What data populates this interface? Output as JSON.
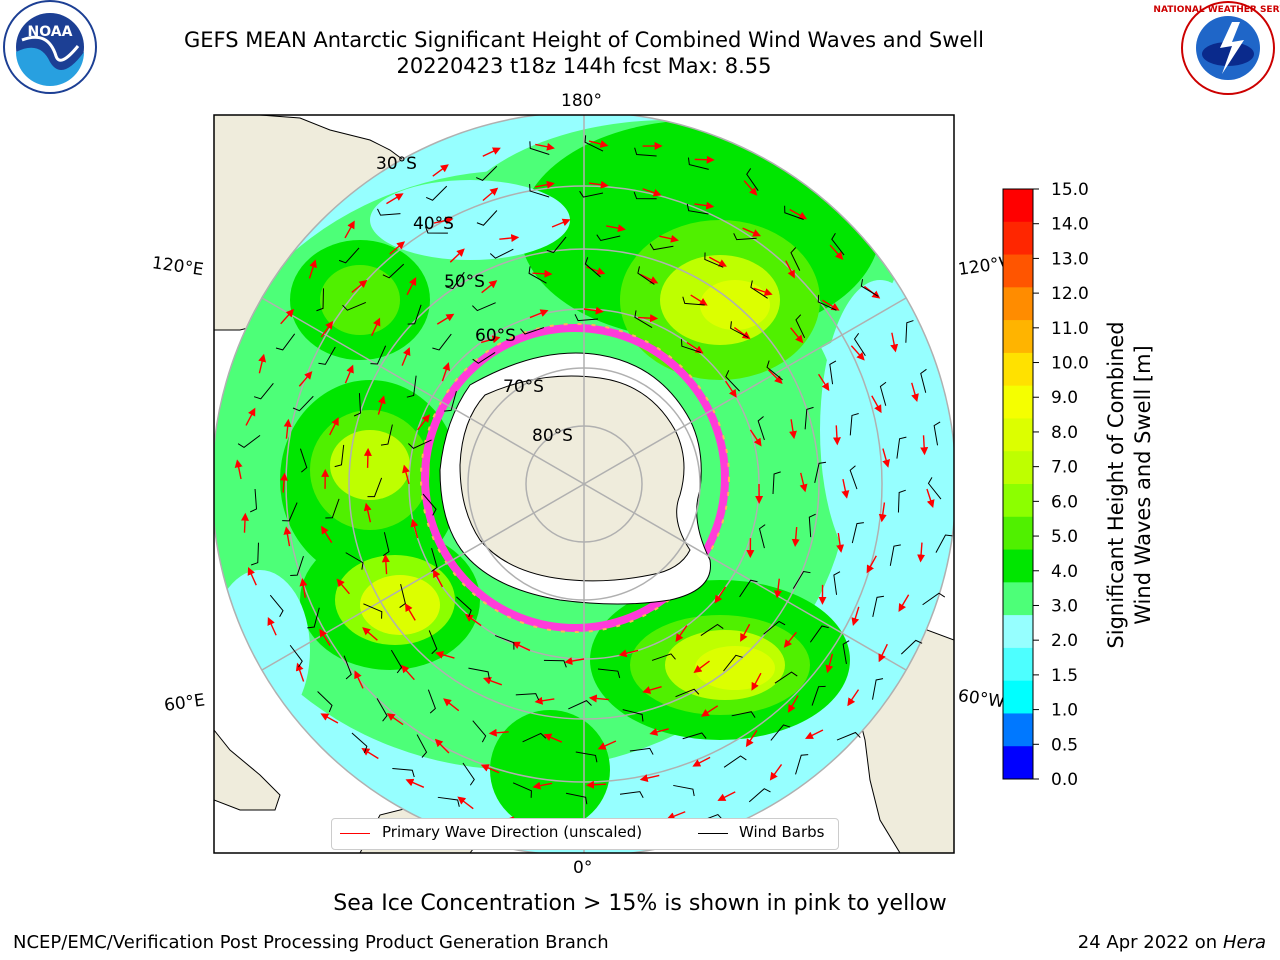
{
  "header": {
    "title_line1": "GEFS MEAN Antarctic Significant Height of Combined Wind Waves and Swell",
    "title_line2": "20220423 t18z 144h fcst   Max: 8.55"
  },
  "logos": {
    "left": {
      "name": "noaa-logo",
      "text": "NOAA"
    },
    "right": {
      "name": "nws-logo",
      "text": "NATIONAL WEATHER SERVICE"
    }
  },
  "map": {
    "projection": "south-polar-stereographic",
    "longitude_labels": [
      "180°",
      "120°E",
      "120°W",
      "60°E",
      "60°W",
      "0°"
    ],
    "latitude_labels": [
      "30°S",
      "40°S",
      "50°S",
      "60°S",
      "70°S",
      "80°S"
    ],
    "land_color": "#efecdc",
    "ice_color": "#ffffff",
    "grid_color": "#b0b0b0"
  },
  "legend": {
    "items": [
      {
        "label": "Primary Wave Direction (unscaled)",
        "color": "#ff0000"
      },
      {
        "label": "Wind Barbs",
        "color": "#000000"
      }
    ]
  },
  "colorbar": {
    "label_line1": "Significant Height of Combined",
    "label_line2": "Wind Waves and Swell [m]",
    "ticks": [
      "15.0",
      "14.0",
      "13.0",
      "12.0",
      "11.0",
      "10.0",
      "9.0",
      "8.0",
      "7.0",
      "6.0",
      "5.0",
      "4.0",
      "3.0",
      "2.0",
      "1.5",
      "1.0",
      "0.5",
      "0.0"
    ],
    "colors": [
      "#ff0000",
      "#ff2600",
      "#ff5500",
      "#ff8c00",
      "#ffb400",
      "#ffe100",
      "#f5ff00",
      "#dcff00",
      "#beff00",
      "#8cff00",
      "#50f000",
      "#00e600",
      "#4dff78",
      "#96ffff",
      "#4dffff",
      "#00ffff",
      "#0078ff",
      "#0000ff"
    ]
  },
  "caption": "Sea Ice Concentration > 15% is shown in pink to yellow",
  "footer": {
    "left": "NCEP/EMC/Verification Post Processing Product Generation Branch",
    "right_date": "24 Apr 2022 on ",
    "right_host": "Hera"
  }
}
